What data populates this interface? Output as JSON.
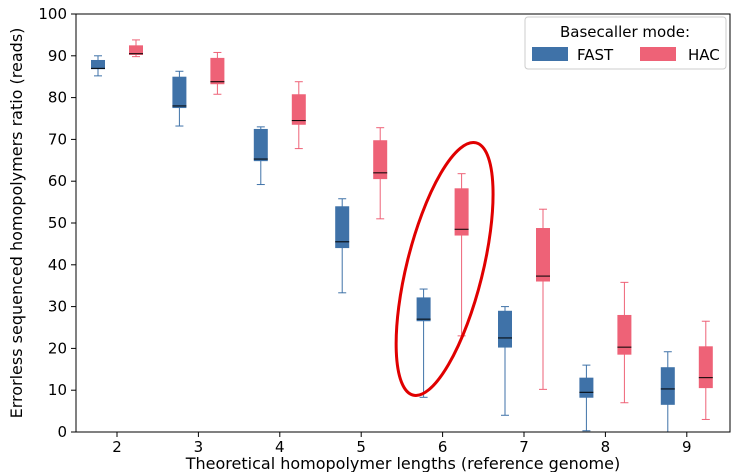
{
  "chart_data": {
    "type": "box",
    "xlabel": "Theoretical homopolymer lengths (reference genome)",
    "ylabel": "Errorless sequenced homopolymers ratio (reads)",
    "categories": [
      "2",
      "3",
      "4",
      "5",
      "6",
      "7",
      "8",
      "9"
    ],
    "ylim": [
      0,
      100
    ],
    "yticks": [
      0,
      10,
      20,
      30,
      40,
      50,
      60,
      70,
      80,
      90,
      100
    ],
    "grid": false,
    "legend": {
      "title": "Basecaller mode:",
      "position": "top-right"
    },
    "series": [
      {
        "name": "FAST",
        "color": "#3f72a8",
        "boxes": [
          {
            "whislo": 85.2,
            "q1": 86.8,
            "med": 87.0,
            "q3": 89.0,
            "whishi": 90.0
          },
          {
            "whislo": 73.2,
            "q1": 77.5,
            "med": 78.0,
            "q3": 85.0,
            "whishi": 86.3
          },
          {
            "whislo": 59.2,
            "q1": 64.8,
            "med": 65.3,
            "q3": 72.5,
            "whishi": 73.0
          },
          {
            "whislo": 33.3,
            "q1": 44.0,
            "med": 45.5,
            "q3": 54.0,
            "whishi": 55.8
          },
          {
            "whislo": 8.3,
            "q1": 26.5,
            "med": 27.0,
            "q3": 32.2,
            "whishi": 34.2
          },
          {
            "whislo": 4.0,
            "q1": 20.2,
            "med": 22.5,
            "q3": 29.0,
            "whishi": 30.0
          },
          {
            "whislo": 0.3,
            "q1": 8.2,
            "med": 9.5,
            "q3": 13.0,
            "whishi": 16.0
          },
          {
            "whislo": 0.0,
            "q1": 6.5,
            "med": 10.3,
            "q3": 15.5,
            "whishi": 19.2
          }
        ]
      },
      {
        "name": "HAC",
        "color": "#ee6277",
        "boxes": [
          {
            "whislo": 89.8,
            "q1": 90.2,
            "med": 90.5,
            "q3": 92.5,
            "whishi": 93.8
          },
          {
            "whislo": 80.8,
            "q1": 83.2,
            "med": 83.8,
            "q3": 89.5,
            "whishi": 90.8
          },
          {
            "whislo": 67.8,
            "q1": 73.5,
            "med": 74.5,
            "q3": 80.8,
            "whishi": 83.8
          },
          {
            "whislo": 51.0,
            "q1": 60.5,
            "med": 62.0,
            "q3": 69.8,
            "whishi": 72.8
          },
          {
            "whislo": 23.0,
            "q1": 47.0,
            "med": 48.5,
            "q3": 58.3,
            "whishi": 61.8
          },
          {
            "whislo": 10.2,
            "q1": 36.0,
            "med": 37.3,
            "q3": 48.8,
            "whishi": 53.3
          },
          {
            "whislo": 7.0,
            "q1": 18.5,
            "med": 20.3,
            "q3": 28.0,
            "whishi": 35.8
          },
          {
            "whislo": 3.0,
            "q1": 10.5,
            "med": 13.0,
            "q3": 20.5,
            "whishi": 26.5
          }
        ]
      }
    ],
    "annotations": [
      {
        "type": "ellipse",
        "category": "6",
        "y_center": 39,
        "color": "#e00000"
      }
    ]
  }
}
